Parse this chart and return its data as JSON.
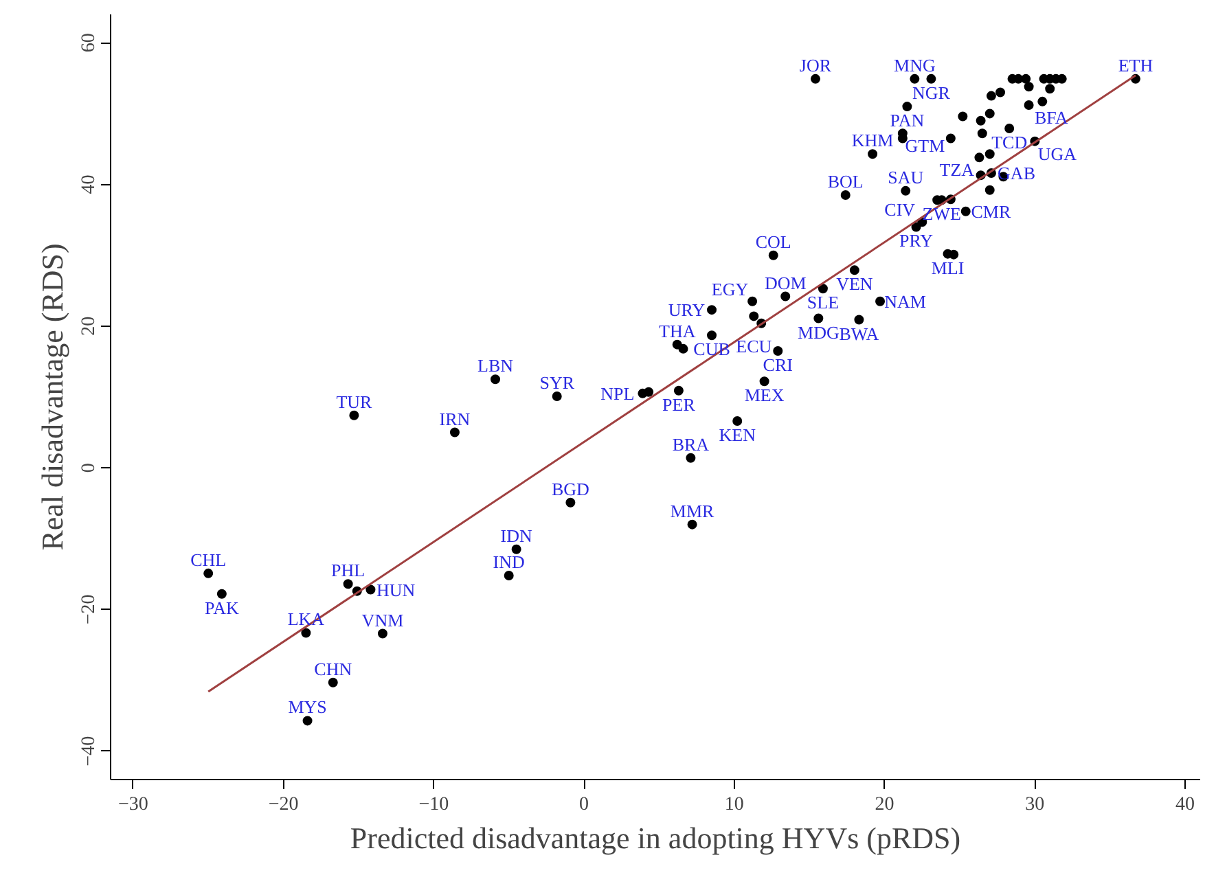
{
  "chart_data": {
    "type": "scatter",
    "xlabel": "Predicted disadvantage in adopting HYVs (pRDS)",
    "ylabel": "Real disadvantage (RDS)",
    "xlim": [
      -31.5,
      41
    ],
    "ylim": [
      -44,
      64
    ],
    "xticks": [
      -30,
      -20,
      -10,
      0,
      10,
      20,
      30,
      40
    ],
    "yticks": [
      -40,
      -20,
      0,
      20,
      40,
      60
    ],
    "grid": false,
    "marker": "circle",
    "series": [
      {
        "color": "#000000",
        "x": [
          -25.0,
          -24.1,
          -15.3,
          -5.9,
          -8.6,
          -1.8,
          3.9,
          4.3,
          6.3,
          7.1,
          -0.9,
          7.2,
          -4.5,
          -5.0,
          -15.7,
          -15.1,
          -14.2,
          -18.5,
          -13.4,
          -16.7,
          -18.4,
          12.6,
          18.0,
          15.9,
          13.4,
          11.2,
          8.5,
          11.3,
          11.8,
          15.6,
          18.3,
          19.7,
          8.5,
          6.2,
          6.6,
          12.9,
          12.0,
          10.2,
          15.4,
          22.0,
          23.1,
          21.5,
          21.2,
          21.2,
          19.2,
          17.4,
          21.4,
          23.5,
          23.8,
          24.4,
          25.4,
          22.1,
          22.5,
          24.2,
          24.6,
          36.7,
          28.5,
          28.9,
          29.4,
          30.6,
          31.0,
          31.4,
          31.8,
          29.6,
          31.0,
          27.7,
          27.1,
          29.6,
          30.5,
          25.2,
          26.4,
          27.0,
          26.5,
          28.3,
          30.0,
          24.4,
          26.3,
          27.0,
          26.4,
          27.1,
          27.9,
          27.0
        ],
        "values": [
          -14.9,
          -17.8,
          7.4,
          12.5,
          5.0,
          10.1,
          10.5,
          10.7,
          10.9,
          1.4,
          -4.9,
          -8.0,
          -11.5,
          -15.2,
          -16.4,
          -17.4,
          -17.2,
          -23.3,
          -23.4,
          -30.3,
          -35.7,
          30.0,
          27.9,
          25.3,
          24.2,
          23.5,
          22.3,
          21.4,
          20.4,
          21.1,
          20.9,
          23.5,
          18.7,
          17.4,
          16.8,
          16.5,
          12.2,
          6.6,
          54.9,
          54.9,
          54.9,
          51.0,
          47.2,
          46.5,
          44.3,
          38.5,
          39.1,
          37.8,
          37.8,
          37.9,
          36.2,
          34.0,
          34.7,
          30.2,
          30.1,
          54.9,
          54.9,
          54.9,
          54.9,
          54.9,
          54.9,
          54.9,
          54.9,
          53.8,
          53.5,
          53.0,
          52.5,
          51.2,
          51.7,
          49.6,
          49.0,
          50.0,
          47.2,
          47.9,
          46.1,
          46.5,
          43.8,
          44.3,
          41.3,
          41.6,
          41.1,
          39.2
        ]
      },
      {
        "type": "line",
        "marker": "none",
        "color": "#a04040",
        "x": [
          -25.0,
          36.7
        ],
        "values": [
          -31.6,
          55.4
        ]
      }
    ],
    "annotations": [
      {
        "text": "CHL",
        "x": -25.0,
        "y": -14.9
      },
      {
        "text": "PAK",
        "x": -24.1,
        "y": -17.8
      },
      {
        "text": "TUR",
        "x": -15.3,
        "y": 7.4
      },
      {
        "text": "LBN",
        "x": -5.9,
        "y": 12.5
      },
      {
        "text": "IRN",
        "x": -8.6,
        "y": 5.0
      },
      {
        "text": "SYR",
        "x": -1.8,
        "y": 10.1
      },
      {
        "text": "NPL",
        "x": 3.9,
        "y": 10.5
      },
      {
        "text": "PER",
        "x": 6.3,
        "y": 10.9
      },
      {
        "text": "BRA",
        "x": 7.1,
        "y": 1.4
      },
      {
        "text": "BGD",
        "x": -0.9,
        "y": -4.9
      },
      {
        "text": "MMR",
        "x": 7.2,
        "y": -8.0
      },
      {
        "text": "IDN",
        "x": -4.5,
        "y": -11.5
      },
      {
        "text": "IND",
        "x": -5.0,
        "y": -15.2
      },
      {
        "text": "PHL",
        "x": -15.7,
        "y": -16.4
      },
      {
        "text": "HUN",
        "x": -14.2,
        "y": -17.2
      },
      {
        "text": "LKA",
        "x": -18.5,
        "y": -23.3
      },
      {
        "text": "VNM",
        "x": -13.4,
        "y": -23.4
      },
      {
        "text": "CHN",
        "x": -16.7,
        "y": -30.3
      },
      {
        "text": "MYS",
        "x": -18.4,
        "y": -35.7
      },
      {
        "text": "COL",
        "x": 12.6,
        "y": 30.0
      },
      {
        "text": "VEN",
        "x": 18.0,
        "y": 27.9
      },
      {
        "text": "SLE",
        "x": 15.9,
        "y": 25.3
      },
      {
        "text": "DOM",
        "x": 13.4,
        "y": 24.2
      },
      {
        "text": "EGY",
        "x": 11.2,
        "y": 23.5
      },
      {
        "text": "URY",
        "x": 8.5,
        "y": 22.3
      },
      {
        "text": "ECU",
        "x": 11.3,
        "y": 21.4
      },
      {
        "text": "MDG",
        "x": 15.6,
        "y": 21.1
      },
      {
        "text": "BWA",
        "x": 18.3,
        "y": 20.9
      },
      {
        "text": "NAM",
        "x": 19.7,
        "y": 23.5
      },
      {
        "text": "CUB",
        "x": 8.5,
        "y": 18.7
      },
      {
        "text": "THA",
        "x": 6.2,
        "y": 17.4
      },
      {
        "text": "CRI",
        "x": 12.9,
        "y": 16.5
      },
      {
        "text": "MEX",
        "x": 12.0,
        "y": 12.2
      },
      {
        "text": "KEN",
        "x": 10.2,
        "y": 6.6
      },
      {
        "text": "JOR",
        "x": 15.4,
        "y": 54.9
      },
      {
        "text": "MNG",
        "x": 22.0,
        "y": 54.9
      },
      {
        "text": "NGR",
        "x": 23.1,
        "y": 54.9
      },
      {
        "text": "PAN",
        "x": 21.5,
        "y": 51.0
      },
      {
        "text": "GTM",
        "x": 21.2,
        "y": 47.2
      },
      {
        "text": "KHM",
        "x": 19.2,
        "y": 44.3
      },
      {
        "text": "BOL",
        "x": 17.4,
        "y": 38.5
      },
      {
        "text": "SAU",
        "x": 21.4,
        "y": 39.1
      },
      {
        "text": "ZWE",
        "x": 23.8,
        "y": 37.8
      },
      {
        "text": "CMR",
        "x": 25.4,
        "y": 36.2
      },
      {
        "text": "CIV",
        "x": 22.5,
        "y": 34.7
      },
      {
        "text": "PRY",
        "x": 22.1,
        "y": 34.0
      },
      {
        "text": "MLI",
        "x": 24.2,
        "y": 30.2
      },
      {
        "text": "ETH",
        "x": 36.7,
        "y": 54.9
      },
      {
        "text": "BFA",
        "x": 29.6,
        "y": 51.2
      },
      {
        "text": "TCD",
        "x": 28.3,
        "y": 47.9
      },
      {
        "text": "UGA",
        "x": 30.0,
        "y": 46.1
      },
      {
        "text": "TZA",
        "x": 26.3,
        "y": 43.8
      },
      {
        "text": "GAB",
        "x": 27.1,
        "y": 41.6
      }
    ]
  }
}
